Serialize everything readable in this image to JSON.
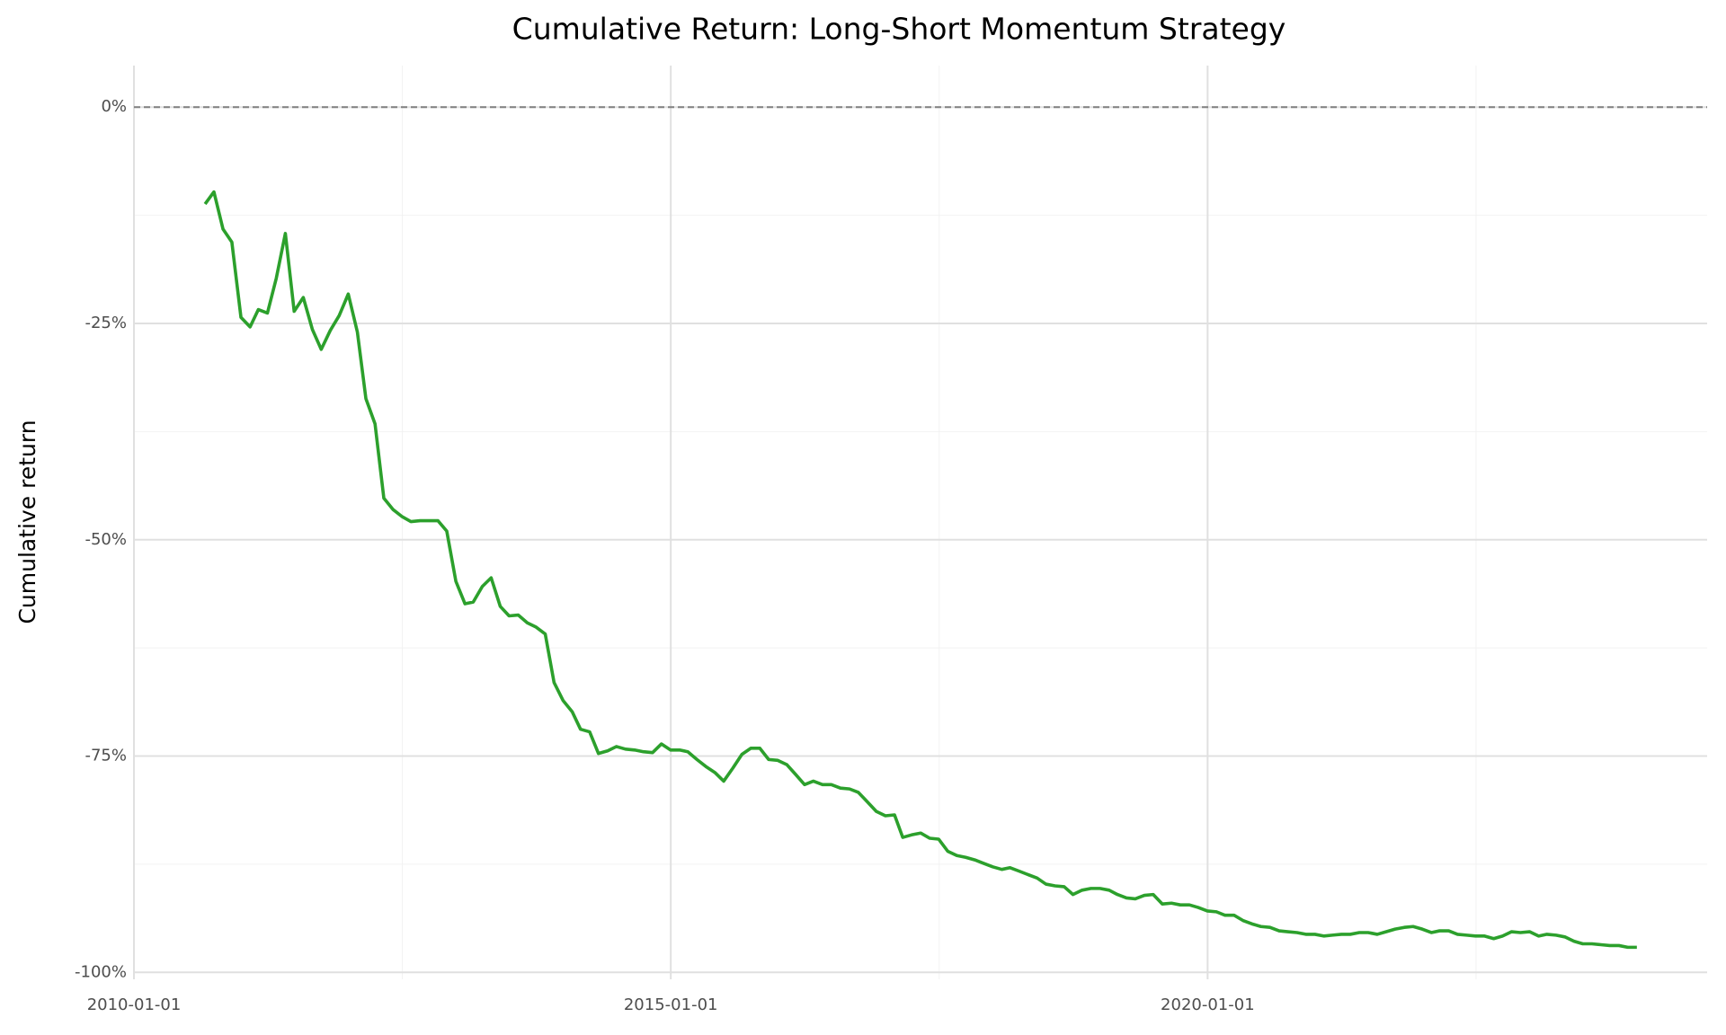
{
  "chart_data": {
    "type": "line",
    "title": "Cumulative Return: Long-Short Momentum Strategy",
    "y_label": "Cumulative return",
    "x": [
      "2010-08-31",
      "2010-09-30",
      "2010-10-31",
      "2010-11-30",
      "2010-12-31",
      "2011-01-31",
      "2011-02-28",
      "2011-03-31",
      "2011-04-30",
      "2011-05-31",
      "2011-06-30",
      "2011-07-31",
      "2011-08-31",
      "2011-09-30",
      "2011-10-31",
      "2011-11-30",
      "2011-12-31",
      "2012-01-31",
      "2012-02-29",
      "2012-03-31",
      "2012-04-30",
      "2012-05-31",
      "2012-06-30",
      "2012-07-31",
      "2012-08-31",
      "2012-09-30",
      "2012-10-31",
      "2012-11-30",
      "2012-12-31",
      "2013-01-31",
      "2013-02-28",
      "2013-03-31",
      "2013-04-30",
      "2013-05-31",
      "2013-06-30",
      "2013-07-31",
      "2013-08-31",
      "2013-09-30",
      "2013-10-31",
      "2013-11-30",
      "2013-12-31",
      "2014-01-31",
      "2014-02-28",
      "2014-03-31",
      "2014-04-30",
      "2014-05-31",
      "2014-06-30",
      "2014-07-31",
      "2014-08-31",
      "2014-09-30",
      "2014-10-31",
      "2014-11-30",
      "2014-12-31",
      "2015-01-31",
      "2015-02-28",
      "2015-03-31",
      "2015-04-30",
      "2015-05-31",
      "2015-06-30",
      "2015-07-31",
      "2015-08-31",
      "2015-09-30",
      "2015-10-31",
      "2015-11-30",
      "2015-12-31",
      "2016-01-31",
      "2016-02-29",
      "2016-03-31",
      "2016-04-30",
      "2016-05-31",
      "2016-06-30",
      "2016-07-31",
      "2016-08-31",
      "2016-09-30",
      "2016-10-31",
      "2016-11-30",
      "2016-12-31",
      "2017-01-31",
      "2017-02-28",
      "2017-03-31",
      "2017-04-30",
      "2017-05-31",
      "2017-06-30",
      "2017-07-31",
      "2017-08-31",
      "2017-09-30",
      "2017-10-31",
      "2017-11-30",
      "2017-12-31",
      "2018-01-31",
      "2018-02-28",
      "2018-03-31",
      "2018-04-30",
      "2018-05-31",
      "2018-06-30",
      "2018-07-31",
      "2018-08-31",
      "2018-09-30",
      "2018-10-31",
      "2018-11-30",
      "2018-12-31",
      "2019-01-31",
      "2019-02-28",
      "2019-03-31",
      "2019-04-30",
      "2019-05-31",
      "2019-06-30",
      "2019-07-31",
      "2019-08-31",
      "2019-09-30",
      "2019-10-31",
      "2019-11-30",
      "2019-12-31",
      "2020-01-31",
      "2020-02-29",
      "2020-03-31",
      "2020-04-30",
      "2020-05-31",
      "2020-06-30",
      "2020-07-31",
      "2020-08-31",
      "2020-09-30",
      "2020-10-31",
      "2020-11-30",
      "2020-12-31",
      "2021-01-31",
      "2021-02-28",
      "2021-03-31",
      "2021-04-30",
      "2021-05-31",
      "2021-06-30",
      "2021-07-31",
      "2021-08-31",
      "2021-09-30",
      "2021-10-31",
      "2021-11-30",
      "2021-12-31",
      "2022-01-31",
      "2022-02-28",
      "2022-03-31",
      "2022-04-30",
      "2022-05-31",
      "2022-06-30",
      "2022-07-31",
      "2022-08-31",
      "2022-09-30",
      "2022-10-31",
      "2022-11-30",
      "2022-12-31",
      "2023-01-31",
      "2023-02-28",
      "2023-03-31",
      "2023-04-30",
      "2023-05-31",
      "2023-06-30",
      "2023-07-31",
      "2023-08-31",
      "2023-09-30",
      "2023-10-31",
      "2023-11-30",
      "2023-12-31"
    ],
    "values": [
      -11.2,
      -9.8,
      -14.1,
      -15.6,
      -24.3,
      -25.4,
      -23.4,
      -23.8,
      -19.8,
      -14.6,
      -23.6,
      -22.0,
      -25.7,
      -28.0,
      -25.8,
      -24.1,
      -21.6,
      -26.0,
      -33.7,
      -36.6,
      -45.2,
      -46.5,
      -47.3,
      -47.9,
      -47.8,
      -47.8,
      -47.8,
      -49.0,
      -54.8,
      -57.4,
      -57.2,
      -55.4,
      -54.4,
      -57.7,
      -58.8,
      -58.7,
      -59.6,
      -60.1,
      -60.9,
      -66.5,
      -68.6,
      -69.9,
      -71.9,
      -72.2,
      -74.7,
      -74.4,
      -73.9,
      -74.2,
      -74.3,
      -74.5,
      -74.6,
      -73.6,
      -74.3,
      -74.3,
      -74.5,
      -75.4,
      -76.2,
      -76.9,
      -77.9,
      -76.4,
      -74.8,
      -74.1,
      -74.1,
      -75.4,
      -75.5,
      -76.0,
      -77.1,
      -78.3,
      -77.9,
      -78.3,
      -78.3,
      -78.7,
      -78.8,
      -79.2,
      -80.3,
      -81.4,
      -81.9,
      -81.8,
      -84.4,
      -84.1,
      -83.9,
      -84.5,
      -84.6,
      -86.0,
      -86.5,
      -86.7,
      -87.0,
      -87.4,
      -87.8,
      -88.1,
      -87.9,
      -88.3,
      -88.7,
      -89.1,
      -89.8,
      -90.0,
      -90.1,
      -91.0,
      -90.5,
      -90.3,
      -90.3,
      -90.5,
      -91.0,
      -91.4,
      -91.5,
      -91.1,
      -91.0,
      -92.1,
      -92.0,
      -92.2,
      -92.2,
      -92.5,
      -92.9,
      -93.0,
      -93.4,
      -93.4,
      -94.0,
      -94.4,
      -94.7,
      -94.8,
      -95.2,
      -95.3,
      -95.4,
      -95.6,
      -95.6,
      -95.8,
      -95.7,
      -95.6,
      -95.6,
      -95.4,
      -95.4,
      -95.6,
      -95.3,
      -95.0,
      -94.8,
      -94.7,
      -95.0,
      -95.4,
      -95.2,
      -95.2,
      -95.6,
      -95.7,
      -95.8,
      -95.8,
      -96.1,
      -95.8,
      -95.3,
      -95.4,
      -95.3,
      -95.8,
      -95.6,
      -95.7,
      -95.9,
      -96.4,
      -96.7,
      -96.7,
      -96.8,
      -96.9,
      -96.9,
      -97.1,
      -97.1
    ],
    "color": "#2ca02c",
    "hline": 0,
    "xlim": [
      "2010-01-01",
      "2024-08-26"
    ],
    "xticks": [
      "2010-01-01",
      "2015-01-01",
      "2020-01-01"
    ],
    "ylim": [
      -100.8,
      4.8
    ],
    "yticks": [
      {
        "value": -100,
        "label": "-100%"
      },
      {
        "value": -75,
        "label": "-75%"
      },
      {
        "value": -50,
        "label": "-50%"
      },
      {
        "value": -25,
        "label": "-25%"
      },
      {
        "value": 0,
        "label": "0%"
      }
    ],
    "grid": true
  }
}
